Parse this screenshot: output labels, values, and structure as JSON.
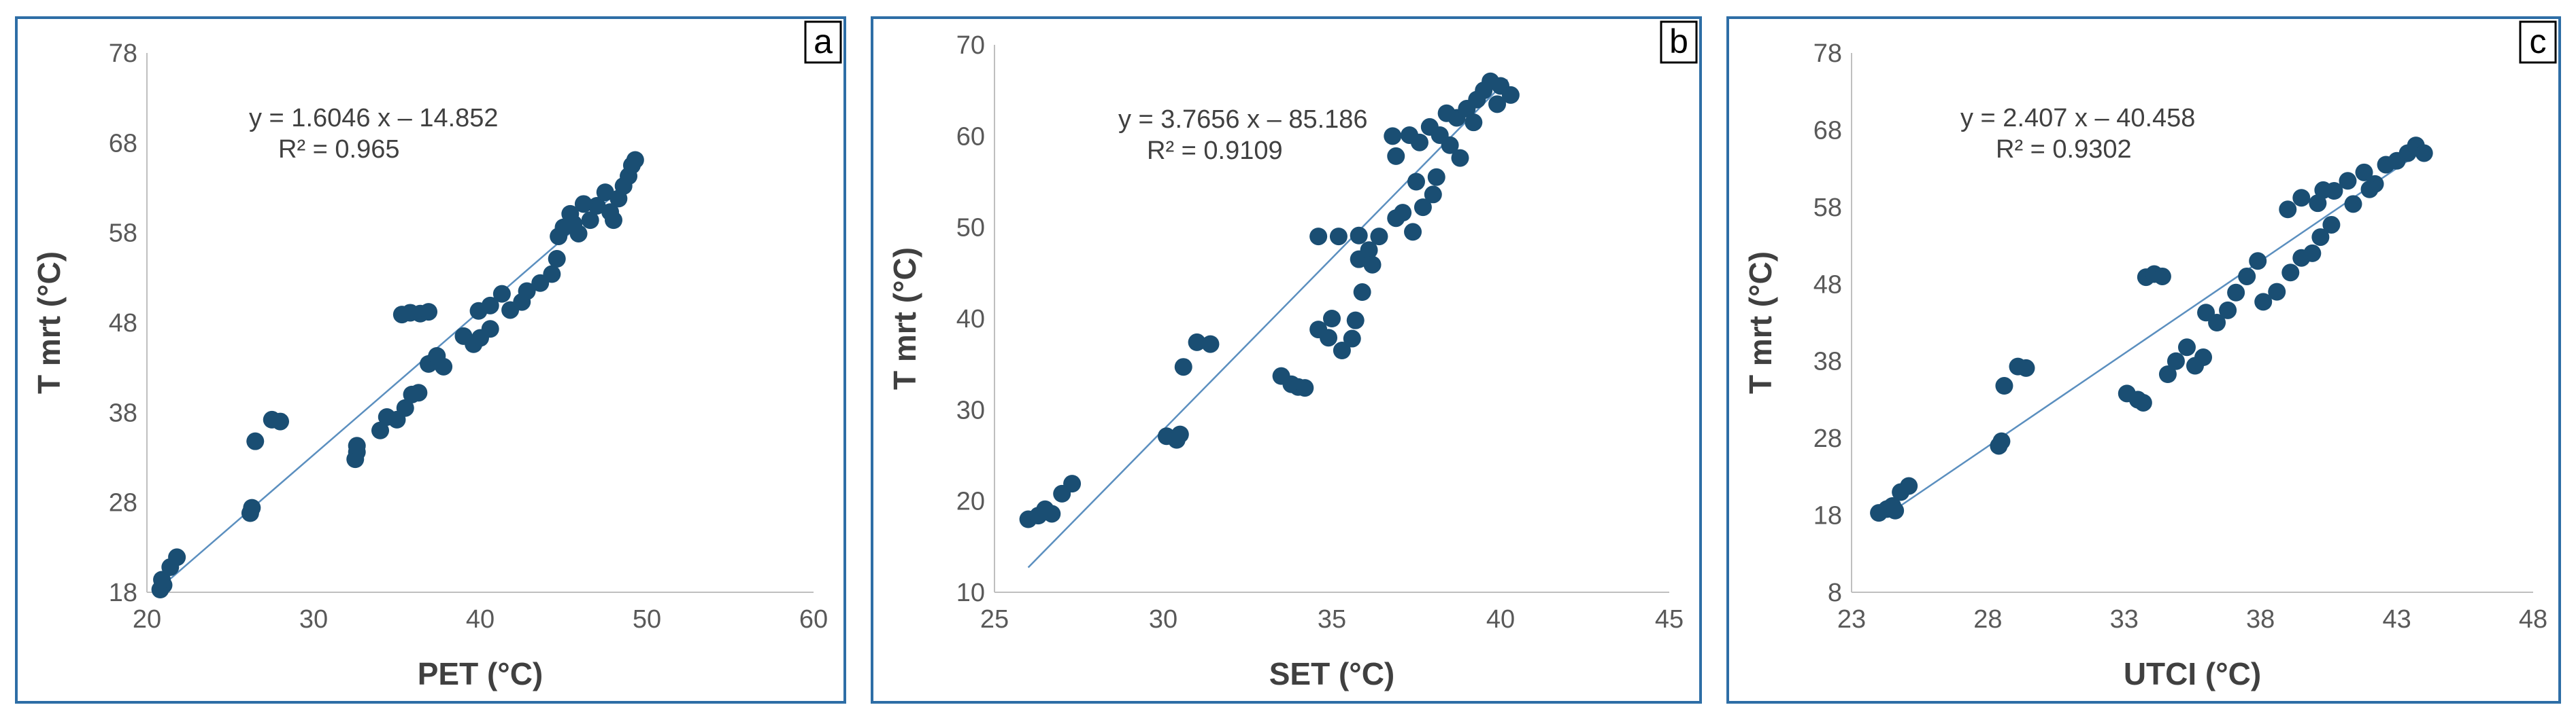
{
  "colors": {
    "marker": "#1a4e73",
    "trendline": "#5b8fbf",
    "border": "#2e6ea6",
    "axis": "#bfbfbf"
  },
  "chart_data": [
    {
      "type": "scatter",
      "panel_label": "a",
      "xlabel": "PET (°C)",
      "ylabel": "T mrt (°C)",
      "xlim": [
        20,
        60
      ],
      "ylim": [
        18,
        78
      ],
      "xticks": [
        20,
        30,
        40,
        50,
        60
      ],
      "yticks": [
        18,
        28,
        38,
        48,
        58,
        68,
        78
      ],
      "grid": false,
      "trendline": {
        "slope": 1.6046,
        "intercept": -14.852,
        "x_range": [
          21,
          49.3
        ],
        "equation": "y = 1.6046 x – 14.852",
        "r2": "R² = 0.965"
      },
      "points": [
        [
          20.8,
          18.3
        ],
        [
          21.0,
          18.8
        ],
        [
          20.9,
          19.4
        ],
        [
          21.4,
          20.8
        ],
        [
          21.8,
          21.9
        ],
        [
          26.2,
          26.8
        ],
        [
          26.3,
          27.4
        ],
        [
          26.5,
          34.8
        ],
        [
          27.5,
          37.2
        ],
        [
          28.0,
          37.0
        ],
        [
          32.5,
          32.8
        ],
        [
          32.6,
          33.6
        ],
        [
          32.6,
          34.3
        ],
        [
          34.0,
          36.0
        ],
        [
          34.4,
          37.5
        ],
        [
          35.0,
          37.2
        ],
        [
          35.5,
          38.5
        ],
        [
          35.9,
          40.0
        ],
        [
          36.3,
          40.2
        ],
        [
          35.3,
          48.9
        ],
        [
          35.8,
          49.1
        ],
        [
          36.4,
          49.0
        ],
        [
          36.9,
          49.2
        ],
        [
          36.9,
          43.4
        ],
        [
          37.4,
          44.3
        ],
        [
          37.8,
          43.1
        ],
        [
          39.0,
          46.5
        ],
        [
          39.6,
          45.6
        ],
        [
          40.0,
          46.3
        ],
        [
          40.6,
          47.3
        ],
        [
          39.9,
          49.3
        ],
        [
          40.6,
          49.9
        ],
        [
          41.3,
          51.2
        ],
        [
          41.8,
          49.4
        ],
        [
          42.5,
          50.3
        ],
        [
          42.8,
          51.5
        ],
        [
          43.6,
          52.4
        ],
        [
          44.3,
          53.4
        ],
        [
          44.6,
          55.1
        ],
        [
          44.7,
          57.6
        ],
        [
          45.0,
          58.6
        ],
        [
          45.4,
          60.1
        ],
        [
          45.9,
          57.9
        ],
        [
          46.6,
          59.4
        ],
        [
          47.0,
          61.0
        ],
        [
          47.5,
          62.5
        ],
        [
          47.8,
          60.3
        ],
        [
          48.3,
          61.8
        ],
        [
          48.6,
          63.2
        ],
        [
          48.9,
          64.3
        ],
        [
          49.1,
          65.5
        ],
        [
          49.3,
          66.1
        ],
        [
          48.0,
          59.4
        ],
        [
          46.2,
          61.2
        ],
        [
          45.6,
          59.0
        ]
      ]
    },
    {
      "type": "scatter",
      "panel_label": "b",
      "xlabel": "SET (°C)",
      "ylabel": "T mrt (°C)",
      "xlim": [
        25,
        45
      ],
      "ylim": [
        10,
        70
      ],
      "xticks": [
        25,
        30,
        35,
        40,
        45
      ],
      "yticks": [
        10,
        20,
        30,
        40,
        50,
        60,
        70
      ],
      "grid": false,
      "trendline": {
        "slope": 3.7656,
        "intercept": -85.186,
        "x_range": [
          26,
          40.2
        ],
        "equation": "y = 3.7656 x – 85.186",
        "r2": "R² = 0.9109"
      },
      "points": [
        [
          26.0,
          18.0
        ],
        [
          26.3,
          18.4
        ],
        [
          26.5,
          19.1
        ],
        [
          26.7,
          18.6
        ],
        [
          27.0,
          20.8
        ],
        [
          27.3,
          21.9
        ],
        [
          30.1,
          27.1
        ],
        [
          30.4,
          26.7
        ],
        [
          30.5,
          27.3
        ],
        [
          30.6,
          34.7
        ],
        [
          31.0,
          37.4
        ],
        [
          31.4,
          37.2
        ],
        [
          33.5,
          33.7
        ],
        [
          33.8,
          32.8
        ],
        [
          34.0,
          32.5
        ],
        [
          34.2,
          32.4
        ],
        [
          34.6,
          38.8
        ],
        [
          34.9,
          37.9
        ],
        [
          35.0,
          40.0
        ],
        [
          35.3,
          36.5
        ],
        [
          35.6,
          37.8
        ],
        [
          35.7,
          39.8
        ],
        [
          35.9,
          42.9
        ],
        [
          35.8,
          46.5
        ],
        [
          36.1,
          47.5
        ],
        [
          36.2,
          45.9
        ],
        [
          34.6,
          49.0
        ],
        [
          35.2,
          49.0
        ],
        [
          35.8,
          49.1
        ],
        [
          36.4,
          49.0
        ],
        [
          36.9,
          51.0
        ],
        [
          37.1,
          51.6
        ],
        [
          37.4,
          49.5
        ],
        [
          37.5,
          55.0
        ],
        [
          37.7,
          52.2
        ],
        [
          38.0,
          53.6
        ],
        [
          38.1,
          55.5
        ],
        [
          36.9,
          57.8
        ],
        [
          36.8,
          60.0
        ],
        [
          37.3,
          60.1
        ],
        [
          37.6,
          59.3
        ],
        [
          37.9,
          61.0
        ],
        [
          38.2,
          60.1
        ],
        [
          38.5,
          59.0
        ],
        [
          38.8,
          57.6
        ],
        [
          38.7,
          62.0
        ],
        [
          39.0,
          63.0
        ],
        [
          39.3,
          64.0
        ],
        [
          39.5,
          65.0
        ],
        [
          39.7,
          66.0
        ],
        [
          40.0,
          65.5
        ],
        [
          40.3,
          64.5
        ],
        [
          39.2,
          61.5
        ],
        [
          38.4,
          62.5
        ],
        [
          39.9,
          63.5
        ]
      ]
    },
    {
      "type": "scatter",
      "panel_label": "c",
      "xlabel": "UTCI (°C)",
      "ylabel": "T mrt (°C)",
      "xlim": [
        23,
        48
      ],
      "ylim": [
        8,
        78
      ],
      "xticks": [
        23,
        28,
        33,
        38,
        43,
        48
      ],
      "yticks": [
        8,
        18,
        28,
        38,
        48,
        58,
        68,
        78
      ],
      "grid": false,
      "trendline": {
        "slope": 2.407,
        "intercept": -40.458,
        "x_range": [
          24,
          44
        ],
        "equation": "y = 2.407 x – 40.458",
        "r2": "R² = 0.9302"
      },
      "points": [
        [
          24.0,
          18.3
        ],
        [
          24.3,
          18.8
        ],
        [
          24.5,
          19.2
        ],
        [
          24.6,
          18.6
        ],
        [
          24.8,
          21.0
        ],
        [
          25.1,
          21.8
        ],
        [
          28.4,
          27.0
        ],
        [
          28.5,
          27.6
        ],
        [
          28.6,
          34.8
        ],
        [
          29.1,
          37.3
        ],
        [
          29.4,
          37.1
        ],
        [
          33.1,
          33.8
        ],
        [
          33.5,
          33.0
        ],
        [
          33.7,
          32.6
        ],
        [
          33.8,
          48.9
        ],
        [
          34.1,
          49.3
        ],
        [
          34.4,
          49.0
        ],
        [
          34.6,
          36.3
        ],
        [
          34.9,
          38.0
        ],
        [
          35.3,
          39.8
        ],
        [
          35.6,
          37.4
        ],
        [
          35.9,
          38.5
        ],
        [
          36.0,
          44.3
        ],
        [
          36.4,
          43.0
        ],
        [
          36.8,
          44.6
        ],
        [
          37.1,
          46.9
        ],
        [
          37.5,
          49.0
        ],
        [
          37.9,
          51.0
        ],
        [
          38.1,
          45.7
        ],
        [
          38.6,
          47.0
        ],
        [
          39.1,
          49.5
        ],
        [
          39.5,
          51.4
        ],
        [
          39.9,
          52.0
        ],
        [
          40.2,
          54.1
        ],
        [
          40.6,
          55.7
        ],
        [
          39.0,
          57.7
        ],
        [
          39.5,
          59.2
        ],
        [
          40.1,
          58.5
        ],
        [
          40.7,
          60.1
        ],
        [
          41.2,
          61.4
        ],
        [
          41.8,
          62.5
        ],
        [
          42.2,
          61.0
        ],
        [
          42.6,
          63.5
        ],
        [
          43.0,
          64.0
        ],
        [
          43.4,
          65.0
        ],
        [
          43.7,
          66.0
        ],
        [
          44.0,
          65.0
        ],
        [
          41.4,
          58.4
        ],
        [
          42.0,
          60.3
        ],
        [
          40.3,
          60.2
        ]
      ]
    }
  ]
}
